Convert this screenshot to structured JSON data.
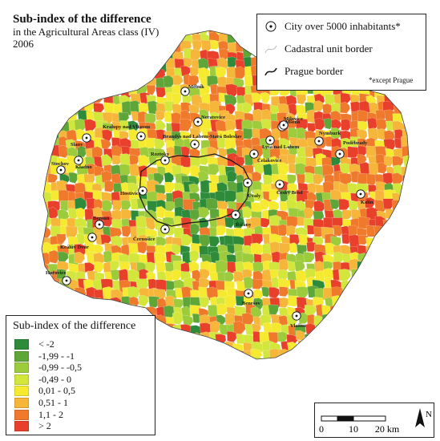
{
  "title": {
    "main": "Sub-index of the difference",
    "line2": "in the Agricultural Areas class (IV)",
    "line3": "2006"
  },
  "legend_top": {
    "city": "City over 5000 inhabitants*",
    "cadastral": "Cadastral unit border",
    "prague": "Prague border"
  },
  "note": "*except Prague",
  "legend_bottom": {
    "title": "Sub-index of the difference",
    "classes": [
      {
        "label": "< -2",
        "color": "#2e8b3a"
      },
      {
        "label": "-1,99 - -1",
        "color": "#5fa638"
      },
      {
        "label": "-0,99 - -0,5",
        "color": "#9ccc3c"
      },
      {
        "label": "-0,49 - 0",
        "color": "#d3e63c"
      },
      {
        "label": "0,01 - 0,5",
        "color": "#f5ea2f"
      },
      {
        "label": "0,51 - 1",
        "color": "#f6b63a"
      },
      {
        "label": "1,1 - 2",
        "color": "#f07a2c"
      },
      {
        "label": "> 2",
        "color": "#e8402a"
      }
    ]
  },
  "scale": {
    "tick0": "0",
    "tick1": "10",
    "tick2": "20 km",
    "north": "N"
  },
  "towns": [
    "Mělník",
    "Neratovice",
    "Mšeno",
    "Kralupy nad Vltavou",
    "Brandýs nad Labem-Stará Boleslav",
    "Slany",
    "Roztoky",
    "Nymburk",
    "Poděbrady",
    "Lysá nad Labem",
    "Milovice",
    "Čelákovice",
    "Kladno",
    "Stochov",
    "Hostivice",
    "Český Brod",
    "Úvaly",
    "Kolín",
    "Říčany",
    "Beroun",
    "Černošice",
    "Králův Dvůr",
    "Hořovice",
    "Benešov",
    "Vlašim"
  ]
}
